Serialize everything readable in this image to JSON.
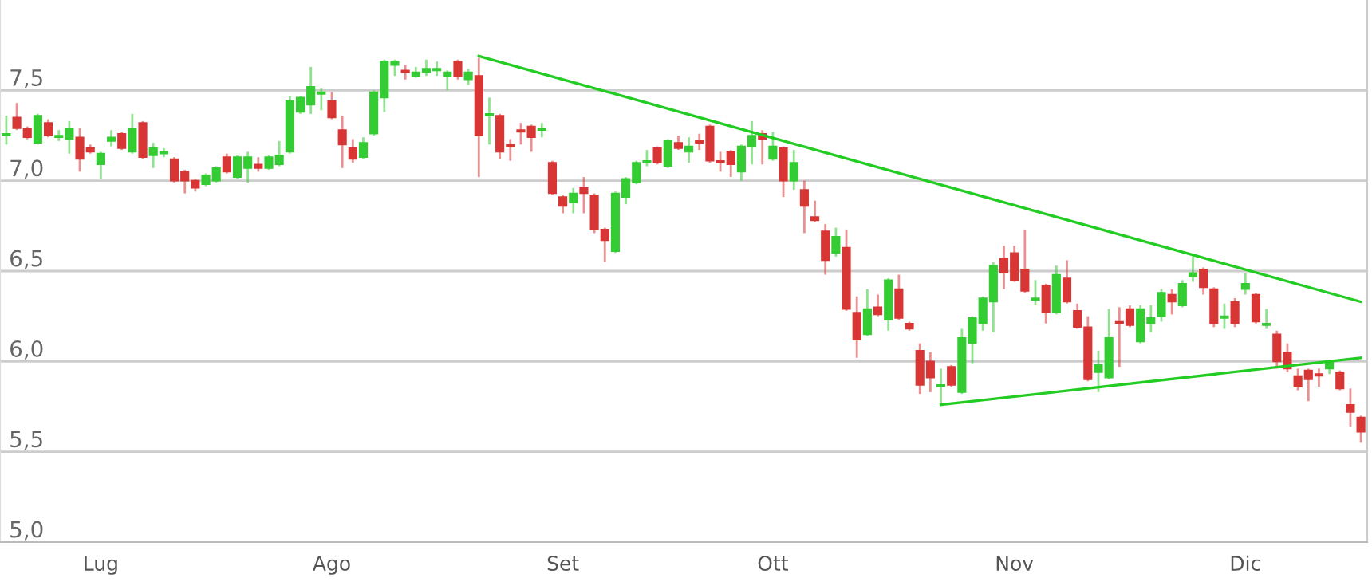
{
  "chart_data": {
    "type": "candlestick",
    "categories": [
      null,
      null,
      null,
      null,
      null,
      null,
      null,
      null,
      null,
      "Lug",
      null,
      null,
      null,
      null,
      null,
      null,
      null,
      null,
      null,
      null,
      null,
      null,
      null,
      null,
      null,
      null,
      null,
      null,
      null,
      null,
      null,
      "Ago",
      null,
      null,
      null,
      null,
      null,
      null,
      null,
      null,
      null,
      null,
      null,
      null,
      null,
      null,
      null,
      null,
      null,
      null,
      null,
      null,
      null,
      "Set",
      null,
      null,
      null,
      null,
      null,
      null,
      null,
      null,
      null,
      null,
      null,
      null,
      null,
      null,
      null,
      null,
      null,
      null,
      null,
      "Ott",
      null,
      null,
      null,
      null,
      null,
      null,
      null,
      null,
      null,
      null,
      null,
      null,
      null,
      null,
      null,
      null,
      null,
      null,
      null,
      null,
      null,
      null,
      "Nov",
      null,
      null,
      null,
      null,
      null,
      null,
      null,
      null,
      null,
      null,
      null,
      null,
      null,
      null,
      null,
      null,
      null,
      null,
      null,
      null,
      null,
      "Dic",
      null,
      null,
      null,
      null,
      null,
      null,
      null,
      null,
      null,
      null,
      null
    ],
    "ohlc": [
      [
        7.25,
        7.36,
        7.2,
        7.26
      ],
      [
        7.35,
        7.43,
        7.28,
        7.29
      ],
      [
        7.29,
        7.3,
        7.23,
        7.24
      ],
      [
        7.21,
        7.37,
        7.2,
        7.36
      ],
      [
        7.32,
        7.34,
        7.24,
        7.25
      ],
      [
        7.24,
        7.28,
        7.22,
        7.25
      ],
      [
        7.23,
        7.33,
        7.15,
        7.29
      ],
      [
        7.24,
        7.29,
        7.05,
        7.12
      ],
      [
        7.18,
        7.2,
        7.15,
        7.16
      ],
      [
        7.09,
        7.16,
        7.01,
        7.15
      ],
      [
        7.22,
        7.28,
        7.19,
        7.24
      ],
      [
        7.26,
        7.27,
        7.17,
        7.18
      ],
      [
        7.16,
        7.37,
        7.15,
        7.29
      ],
      [
        7.32,
        7.33,
        7.12,
        7.13
      ],
      [
        7.14,
        7.21,
        7.07,
        7.18
      ],
      [
        7.15,
        7.18,
        7.13,
        7.16
      ],
      [
        7.12,
        7.13,
        6.99,
        7.0
      ],
      [
        7.05,
        7.06,
        6.93,
        7.0
      ],
      [
        7.0,
        7.01,
        6.94,
        6.96
      ],
      [
        6.98,
        7.04,
        6.97,
        7.03
      ],
      [
        7.0,
        7.08,
        6.99,
        7.07
      ],
      [
        7.13,
        7.15,
        7.04,
        7.05
      ],
      [
        7.02,
        7.14,
        7.01,
        7.13
      ],
      [
        7.07,
        7.16,
        6.99,
        7.13
      ],
      [
        7.09,
        7.13,
        7.05,
        7.07
      ],
      [
        7.07,
        7.14,
        7.06,
        7.13
      ],
      [
        7.09,
        7.22,
        7.08,
        7.14
      ],
      [
        7.16,
        7.47,
        7.15,
        7.44
      ],
      [
        7.38,
        7.47,
        7.37,
        7.46
      ],
      [
        7.42,
        7.63,
        7.37,
        7.52
      ],
      [
        7.48,
        7.51,
        7.39,
        7.49
      ],
      [
        7.44,
        7.49,
        7.34,
        7.35
      ],
      [
        7.28,
        7.36,
        7.07,
        7.2
      ],
      [
        7.18,
        7.23,
        7.1,
        7.12
      ],
      [
        7.13,
        7.24,
        7.12,
        7.21
      ],
      [
        7.26,
        7.5,
        7.25,
        7.49
      ],
      [
        7.46,
        7.67,
        7.38,
        7.66
      ],
      [
        7.64,
        7.67,
        7.58,
        7.66
      ],
      [
        7.61,
        7.64,
        7.56,
        7.6
      ],
      [
        7.58,
        7.63,
        7.57,
        7.6
      ],
      [
        7.6,
        7.67,
        7.58,
        7.62
      ],
      [
        7.61,
        7.66,
        7.58,
        7.62
      ],
      [
        7.58,
        7.61,
        7.5,
        7.6
      ],
      [
        7.66,
        7.67,
        7.56,
        7.58
      ],
      [
        7.56,
        7.62,
        7.53,
        7.6
      ],
      [
        7.58,
        7.68,
        7.02,
        7.25
      ],
      [
        7.36,
        7.46,
        7.2,
        7.37
      ],
      [
        7.36,
        7.37,
        7.12,
        7.16
      ],
      [
        7.2,
        7.23,
        7.11,
        7.19
      ],
      [
        7.28,
        7.32,
        7.2,
        7.27
      ],
      [
        7.3,
        7.31,
        7.16,
        7.24
      ],
      [
        7.28,
        7.32,
        7.24,
        7.29
      ],
      [
        7.1,
        7.11,
        6.92,
        6.93
      ],
      [
        6.91,
        6.92,
        6.82,
        6.86
      ],
      [
        6.88,
        6.96,
        6.82,
        6.93
      ],
      [
        6.96,
        7.02,
        6.82,
        6.93
      ],
      [
        6.92,
        6.93,
        6.71,
        6.73
      ],
      [
        6.73,
        6.74,
        6.55,
        6.67
      ],
      [
        6.61,
        6.94,
        6.6,
        6.93
      ],
      [
        6.91,
        7.02,
        6.87,
        7.01
      ],
      [
        6.99,
        7.11,
        6.98,
        7.1
      ],
      [
        7.1,
        7.17,
        7.08,
        7.11
      ],
      [
        7.18,
        7.19,
        7.09,
        7.1
      ],
      [
        7.08,
        7.23,
        7.07,
        7.22
      ],
      [
        7.21,
        7.25,
        7.17,
        7.18
      ],
      [
        7.16,
        7.24,
        7.1,
        7.19
      ],
      [
        7.22,
        7.26,
        7.17,
        7.21
      ],
      [
        7.3,
        7.31,
        7.1,
        7.11
      ],
      [
        7.11,
        7.16,
        7.05,
        7.1
      ],
      [
        7.16,
        7.17,
        7.02,
        7.09
      ],
      [
        7.05,
        7.2,
        7.0,
        7.19
      ],
      [
        7.19,
        7.33,
        7.09,
        7.25
      ],
      [
        7.26,
        7.28,
        7.09,
        7.23
      ],
      [
        7.12,
        7.27,
        7.11,
        7.19
      ],
      [
        7.18,
        7.19,
        6.91,
        7.0
      ],
      [
        7.0,
        7.17,
        6.95,
        7.1
      ],
      [
        6.95,
        7.0,
        6.71,
        6.86
      ],
      [
        6.8,
        6.89,
        6.77,
        6.78
      ],
      [
        6.72,
        6.76,
        6.48,
        6.56
      ],
      [
        6.6,
        6.74,
        6.58,
        6.69
      ],
      [
        6.63,
        6.73,
        6.28,
        6.29
      ],
      [
        6.27,
        6.36,
        6.02,
        6.12
      ],
      [
        6.15,
        6.4,
        6.14,
        6.29
      ],
      [
        6.3,
        6.37,
        6.25,
        6.26
      ],
      [
        6.23,
        6.46,
        6.17,
        6.45
      ],
      [
        6.4,
        6.48,
        6.23,
        6.24
      ],
      [
        6.21,
        6.22,
        6.17,
        6.18
      ],
      [
        6.06,
        6.1,
        5.82,
        5.87
      ],
      [
        6.0,
        6.05,
        5.83,
        5.91
      ],
      [
        5.86,
        5.96,
        5.77,
        5.87
      ],
      [
        5.97,
        5.98,
        5.86,
        5.87
      ],
      [
        5.83,
        6.18,
        5.82,
        6.13
      ],
      [
        6.1,
        6.25,
        5.99,
        6.24
      ],
      [
        6.21,
        6.36,
        6.17,
        6.35
      ],
      [
        6.33,
        6.55,
        6.16,
        6.53
      ],
      [
        6.57,
        6.64,
        6.4,
        6.49
      ],
      [
        6.6,
        6.64,
        6.44,
        6.45
      ],
      [
        6.51,
        6.73,
        6.38,
        6.39
      ],
      [
        6.34,
        6.45,
        6.31,
        6.35
      ],
      [
        6.42,
        6.43,
        6.21,
        6.27
      ],
      [
        6.27,
        6.53,
        6.26,
        6.48
      ],
      [
        6.46,
        6.56,
        6.32,
        6.33
      ],
      [
        6.28,
        6.32,
        6.18,
        6.19
      ],
      [
        6.19,
        6.25,
        5.89,
        5.9
      ],
      [
        5.94,
        6.06,
        5.83,
        5.98
      ],
      [
        5.91,
        6.29,
        5.9,
        6.13
      ],
      [
        6.22,
        6.3,
        5.97,
        6.21
      ],
      [
        6.29,
        6.31,
        6.19,
        6.2
      ],
      [
        6.11,
        6.31,
        6.1,
        6.29
      ],
      [
        6.21,
        6.31,
        6.16,
        6.24
      ],
      [
        6.25,
        6.4,
        6.22,
        6.38
      ],
      [
        6.37,
        6.4,
        6.26,
        6.33
      ],
      [
        6.31,
        6.45,
        6.3,
        6.43
      ],
      [
        6.47,
        6.58,
        6.44,
        6.49
      ],
      [
        6.51,
        6.52,
        6.37,
        6.41
      ],
      [
        6.4,
        6.41,
        6.19,
        6.21
      ],
      [
        6.24,
        6.32,
        6.18,
        6.25
      ],
      [
        6.33,
        6.35,
        6.19,
        6.21
      ],
      [
        6.4,
        6.49,
        6.37,
        6.43
      ],
      [
        6.37,
        6.38,
        6.21,
        6.22
      ],
      [
        6.2,
        6.29,
        6.18,
        6.21
      ],
      [
        6.15,
        6.17,
        5.96,
        6.0
      ],
      [
        6.05,
        6.1,
        5.94,
        5.96
      ],
      [
        5.92,
        5.96,
        5.84,
        5.86
      ],
      [
        5.95,
        5.96,
        5.78,
        5.9
      ],
      [
        5.93,
        5.96,
        5.86,
        5.92
      ],
      [
        5.96,
        6.01,
        5.93,
        6.0
      ],
      [
        5.94,
        5.95,
        5.84,
        5.85
      ],
      [
        5.76,
        5.85,
        5.64,
        5.72
      ],
      [
        5.69,
        5.7,
        5.55,
        5.61
      ]
    ],
    "colors": [
      "#33cc33",
      "#d83535",
      "#d83535",
      "#33cc33",
      "#d83535",
      "#33cc33",
      "#33cc33",
      "#d83535",
      "#d83535",
      "#33cc33",
      "#33cc33",
      "#d83535",
      "#33cc33",
      "#d83535",
      "#33cc33",
      "#33cc33",
      "#d83535",
      "#d83535",
      "#d83535",
      "#33cc33",
      "#33cc33",
      "#d83535",
      "#33cc33",
      "#33cc33",
      "#d83535",
      "#33cc33",
      "#33cc33",
      "#33cc33",
      "#33cc33",
      "#33cc33",
      "#33cc33",
      "#d83535",
      "#d83535",
      "#d83535",
      "#33cc33",
      "#33cc33",
      "#33cc33",
      "#33cc33",
      "#d83535",
      "#33cc33",
      "#33cc33",
      "#33cc33",
      "#33cc33",
      "#d83535",
      "#33cc33",
      "#d83535",
      "#33cc33",
      "#d83535",
      "#d83535",
      "#d83535",
      "#d83535",
      "#33cc33",
      "#d83535",
      "#d83535",
      "#33cc33",
      "#d83535",
      "#d83535",
      "#d83535",
      "#33cc33",
      "#33cc33",
      "#33cc33",
      "#33cc33",
      "#d83535",
      "#33cc33",
      "#d83535",
      "#33cc33",
      "#d83535",
      "#d83535",
      "#d83535",
      "#d83535",
      "#33cc33",
      "#33cc33",
      "#d83535",
      "#33cc33",
      "#d83535",
      "#33cc33",
      "#d83535",
      "#d83535",
      "#d83535",
      "#33cc33",
      "#d83535",
      "#d83535",
      "#33cc33",
      "#d83535",
      "#33cc33",
      "#d83535",
      "#d83535",
      "#d83535",
      "#d83535",
      "#33cc33",
      "#d83535",
      "#33cc33",
      "#33cc33",
      "#33cc33",
      "#33cc33",
      "#d83535",
      "#d83535",
      "#d83535",
      "#33cc33",
      "#d83535",
      "#33cc33",
      "#d83535",
      "#d83535",
      "#d83535",
      "#33cc33",
      "#33cc33",
      "#d83535",
      "#d83535",
      "#33cc33",
      "#33cc33",
      "#33cc33",
      "#d83535",
      "#33cc33",
      "#33cc33",
      "#d83535",
      "#d83535",
      "#33cc33",
      "#d83535",
      "#33cc33",
      "#d83535",
      "#33cc33",
      "#d83535",
      "#d83535",
      "#d83535",
      "#d83535",
      "#d83535",
      "#33cc33",
      "#d83535",
      "#d83535",
      "#d83535"
    ],
    "series": [
      {
        "type": "line",
        "color": "#22cc22",
        "values": [
          null,
          null,
          null,
          null,
          null,
          null,
          null,
          null,
          null,
          null,
          null,
          null,
          null,
          null,
          null,
          null,
          null,
          null,
          null,
          null,
          null,
          null,
          null,
          null,
          null,
          null,
          null,
          null,
          null,
          null,
          null,
          null,
          null,
          null,
          null,
          null,
          null,
          null,
          null,
          null,
          null,
          null,
          null,
          null,
          null,
          7.69,
          null,
          null,
          null,
          null,
          null,
          null,
          null,
          null,
          null,
          null,
          null,
          null,
          null,
          null,
          null,
          null,
          null,
          null,
          null,
          null,
          null,
          null,
          null,
          null,
          null,
          null,
          null,
          null,
          null,
          null,
          null,
          null,
          null,
          null,
          null,
          null,
          null,
          null,
          null,
          null,
          null,
          null,
          null,
          null,
          null,
          null,
          null,
          null,
          null,
          null,
          null,
          null,
          null,
          null,
          null,
          null,
          null,
          null,
          null,
          null,
          null,
          null,
          null,
          null,
          null,
          null,
          null,
          null,
          null,
          null,
          null,
          null,
          null,
          null,
          null,
          null,
          null,
          null,
          null,
          null,
          null,
          null,
          null,
          6.33
        ]
      },
      {
        "type": "line",
        "color": "#22cc22",
        "values": [
          null,
          null,
          null,
          null,
          null,
          null,
          null,
          null,
          null,
          null,
          null,
          null,
          null,
          null,
          null,
          null,
          null,
          null,
          null,
          null,
          null,
          null,
          null,
          null,
          null,
          null,
          null,
          null,
          null,
          null,
          null,
          null,
          null,
          null,
          null,
          null,
          null,
          null,
          null,
          null,
          null,
          null,
          null,
          null,
          null,
          null,
          null,
          null,
          null,
          null,
          null,
          null,
          null,
          null,
          null,
          null,
          null,
          null,
          null,
          null,
          null,
          null,
          null,
          null,
          null,
          null,
          null,
          null,
          null,
          null,
          null,
          null,
          null,
          null,
          null,
          null,
          null,
          null,
          null,
          null,
          null,
          null,
          null,
          null,
          null,
          null,
          null,
          null,
          null,
          5.76,
          null,
          null,
          null,
          null,
          null,
          null,
          null,
          null,
          null,
          null,
          null,
          null,
          null,
          null,
          null,
          null,
          null,
          null,
          null,
          null,
          null,
          null,
          null,
          null,
          null,
          null,
          null,
          null,
          null,
          null,
          null,
          null,
          null,
          null,
          null,
          null,
          null,
          null,
          null,
          6.02
        ]
      }
    ],
    "ylim": [
      5.0,
      8.0
    ],
    "yticks": [
      {
        "value": 5.0,
        "label": "5,0"
      },
      {
        "value": 5.5,
        "label": "5,5"
      },
      {
        "value": 6.0,
        "label": "6,0"
      },
      {
        "value": 6.5,
        "label": "6,5"
      },
      {
        "value": 7.0,
        "label": "7,0"
      },
      {
        "value": 7.5,
        "label": "7,5"
      }
    ],
    "grid": "y"
  }
}
